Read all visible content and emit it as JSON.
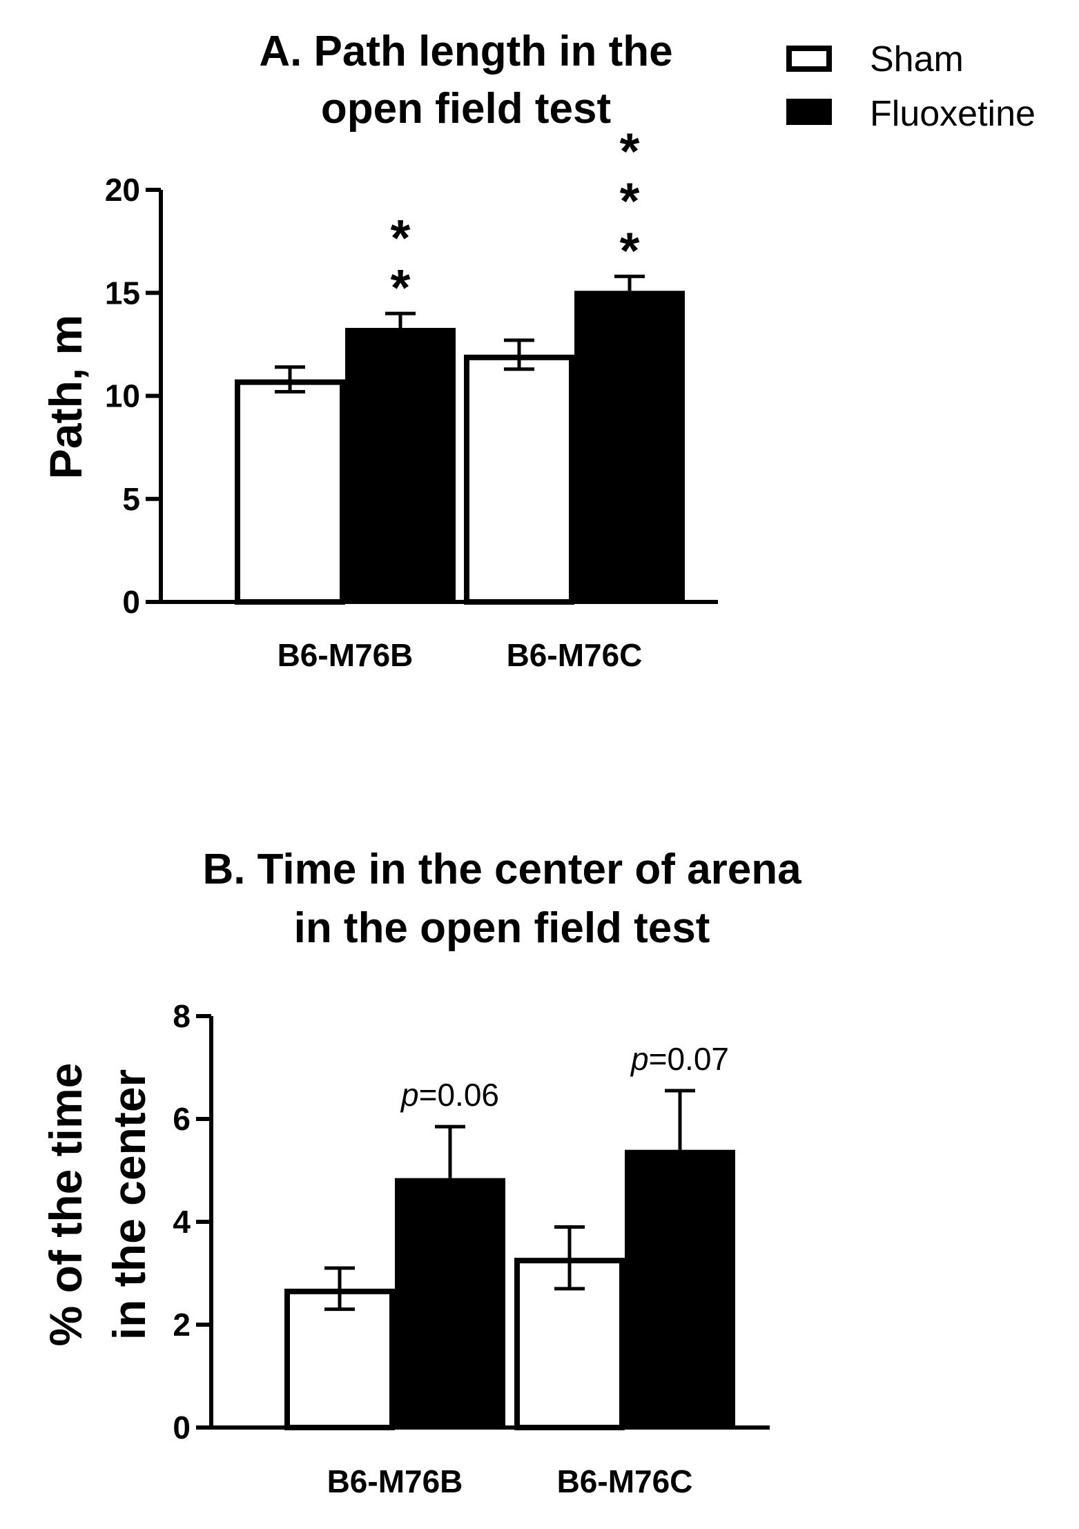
{
  "legend": {
    "items": [
      {
        "label": "Sham",
        "fill": "#ffffff"
      },
      {
        "label": "Fluoxetine",
        "fill": "#000000"
      }
    ]
  },
  "chart_data": [
    {
      "type": "bar",
      "title_lines": [
        "A. Path length in the",
        "open field test"
      ],
      "ylabel": "Path, m",
      "ylim": [
        0,
        20
      ],
      "yticks": [
        0,
        5,
        10,
        15,
        20
      ],
      "categories": [
        "B6-M76B",
        "B6-M76C"
      ],
      "series": [
        {
          "name": "Sham",
          "values": [
            10.8,
            12.0
          ],
          "errors": [
            0.6,
            0.7
          ]
        },
        {
          "name": "Fluoxetine",
          "values": [
            13.3,
            15.1
          ],
          "errors": [
            0.7,
            0.7
          ]
        }
      ],
      "annotations": [
        {
          "category": "B6-M76B",
          "series": "Fluoxetine",
          "text": "**"
        },
        {
          "category": "B6-M76C",
          "series": "Fluoxetine",
          "text": "***"
        }
      ],
      "legend": "top-right",
      "grid": false
    },
    {
      "type": "bar",
      "title_lines": [
        "B. Time in the center of arena",
        "in the open field test"
      ],
      "ylabel_lines": [
        "% of the time",
        "in the center"
      ],
      "ylim": [
        0,
        8
      ],
      "yticks": [
        0,
        2,
        4,
        6,
        8
      ],
      "categories": [
        "B6-M76B",
        "B6-M76C"
      ],
      "series": [
        {
          "name": "Sham",
          "values": [
            2.7,
            3.3
          ],
          "errors": [
            0.4,
            0.6
          ]
        },
        {
          "name": "Fluoxetine",
          "values": [
            4.85,
            5.4
          ],
          "errors": [
            1.0,
            1.15
          ]
        }
      ],
      "annotations": [
        {
          "category": "B6-M76B",
          "series": "Fluoxetine",
          "italic": "p",
          "text": "=0.06"
        },
        {
          "category": "B6-M76C",
          "series": "Fluoxetine",
          "italic": "p",
          "text": "=0.07"
        }
      ],
      "grid": false
    }
  ]
}
